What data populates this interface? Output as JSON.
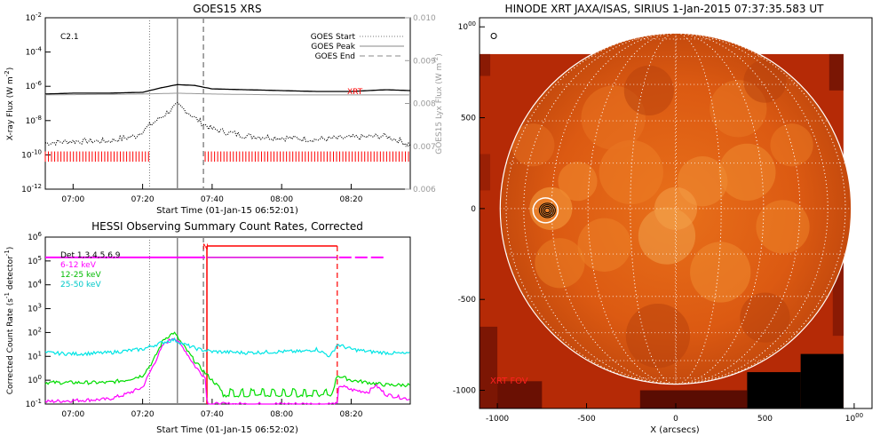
{
  "chart_data": [
    {
      "type": "line",
      "title": "GOES15 XRS",
      "xlabel": "Start Time (01-Jan-15 06:52:01)",
      "ylabel": "X-ray Flux (W m-2)",
      "ylabel_right": "GOES15 Lyx Flux (W m-2)",
      "x_ticks": [
        "07:00",
        "07:20",
        "07:40",
        "08:00",
        "08:20"
      ],
      "x_tick_minutes": [
        420,
        440,
        460,
        480,
        500
      ],
      "xlim_minutes": [
        412,
        517
      ],
      "y_ticks": [
        "10-2",
        "10-4",
        "10-6",
        "10-8",
        "10-10",
        "10-12"
      ],
      "y_exponents": [
        -2,
        -4,
        -6,
        -8,
        -10,
        -12
      ],
      "ylim_exp": [
        -12,
        -2
      ],
      "y2_ticks": [
        "0.010",
        "0.009",
        "0.008",
        "0.007",
        "0.006"
      ],
      "y2lim": [
        0.006,
        0.01
      ],
      "flare_class": "C2.1",
      "xrt_label": "XRT",
      "legend": [
        {
          "name": "GOES Start",
          "style": "dotted"
        },
        {
          "name": "GOES Peak",
          "style": "solid"
        },
        {
          "name": "GOES End",
          "style": "dashed"
        }
      ],
      "event_times_minutes": {
        "start": 442,
        "peak": 450,
        "end": 457.5
      },
      "series": [
        {
          "name": "XRS long",
          "exp_x": [
            412,
            420,
            430,
            440,
            445,
            450,
            455,
            460,
            470,
            480,
            490,
            500,
            510,
            517
          ],
          "exp_y": [
            -6.45,
            -6.4,
            -6.4,
            -6.35,
            -6.1,
            -5.9,
            -5.95,
            -6.15,
            -6.2,
            -6.25,
            -6.3,
            -6.3,
            -6.2,
            -6.25
          ]
        },
        {
          "name": "Lyman-alpha",
          "exp_x": [
            412,
            440,
            450,
            460,
            480,
            500,
            517
          ],
          "exp_y": [
            -6.5,
            -6.45,
            -6.4,
            -6.45,
            -6.5,
            -6.5,
            -6.5
          ]
        },
        {
          "name": "XRS short",
          "exp_x": [
            412,
            420,
            430,
            438,
            442,
            446,
            450,
            453,
            456,
            460,
            465,
            470,
            480,
            490,
            500,
            510,
            517
          ],
          "exp_y": [
            -9.3,
            -9.2,
            -9.2,
            -8.9,
            -8.3,
            -7.7,
            -7.1,
            -7.5,
            -8.0,
            -8.5,
            -8.7,
            -8.9,
            -9.0,
            -9.1,
            -9.0,
            -8.9,
            -9.4
          ]
        }
      ],
      "xrt_coverage_minutes": [
        [
          412,
          442
        ],
        [
          458,
          517
        ]
      ]
    },
    {
      "type": "line",
      "title": "HESSI Observing Summary Count Rates, Corrected",
      "xlabel": "Start Time (01-Jan-15 06:52:02)",
      "ylabel": "Corrected Count Rate (s-1 detector-1)",
      "x_ticks": [
        "07:00",
        "07:20",
        "07:40",
        "08:00",
        "08:20"
      ],
      "x_tick_minutes": [
        420,
        440,
        460,
        480,
        500
      ],
      "xlim_minutes": [
        412,
        517
      ],
      "y_ticks": [
        "10-1",
        "100",
        "101",
        "102",
        "103",
        "104",
        "105",
        "106"
      ],
      "y_exponents": [
        -1,
        0,
        1,
        2,
        3,
        4,
        5,
        6
      ],
      "ylim_exp": [
        -1,
        6
      ],
      "legend": [
        {
          "name": "Det 1,3,4,5,6,9",
          "color": "#000000"
        },
        {
          "name": "6-12 keV",
          "color": "#ff00ff"
        },
        {
          "name": "12-25 keV",
          "color": "#00dd00"
        },
        {
          "name": "25-50 keV",
          "color": "#00e5e5"
        }
      ],
      "night_label": "N",
      "night_minutes": [
        458.5,
        496
      ],
      "series": [
        {
          "name": "6-12 keV",
          "color": "#ff00ff",
          "exp_x": [
            412,
            420,
            430,
            435,
            440,
            443,
            446,
            449,
            452,
            455,
            458,
            458.6,
            496,
            496.5,
            500,
            505,
            507,
            510,
            517
          ],
          "exp_y": [
            -0.9,
            -0.85,
            -0.8,
            -0.6,
            -0.3,
            0.6,
            1.5,
            1.8,
            1.3,
            0.6,
            0.1,
            -1,
            -1,
            -0.2,
            -0.4,
            -0.5,
            -0.2,
            -0.6,
            -0.8
          ]
        },
        {
          "name": "12-25 keV",
          "color": "#00dd00",
          "exp_x": [
            412,
            420,
            430,
            435,
            440,
            443,
            446,
            449,
            452,
            455,
            458,
            462,
            470,
            480,
            486,
            488,
            494,
            496,
            500,
            505,
            510,
            517
          ],
          "exp_y": [
            -0.1,
            -0.1,
            -0.1,
            0,
            0.2,
            0.8,
            1.7,
            2.0,
            1.4,
            0.8,
            0.3,
            -0.3,
            -0.3,
            -0.4,
            -0.8,
            -0.8,
            -0.8,
            0.2,
            0.0,
            -0.1,
            -0.2,
            -0.2
          ]
        },
        {
          "name": "25-50 keV",
          "color": "#00e5e5",
          "exp_x": [
            412,
            420,
            430,
            440,
            445,
            449,
            452,
            456,
            460,
            470,
            480,
            486,
            490,
            494,
            496,
            500,
            505,
            510,
            517
          ],
          "exp_y": [
            1.15,
            1.1,
            1.15,
            1.3,
            1.55,
            1.7,
            1.5,
            1.3,
            1.2,
            1.15,
            1.2,
            1.2,
            1.3,
            1.0,
            1.5,
            1.3,
            1.2,
            1.15,
            1.1
          ]
        },
        {
          "name": "Det 1,3,4,5,6,9",
          "color": "#ff00ff",
          "exp_x": [
            412,
            458
          ],
          "exp_y": [
            5.1,
            5.1
          ]
        }
      ]
    },
    {
      "type": "heatmap",
      "title": "HINODE XRT JAXA/ISAS, SIRIUS   1-Jan-2015 07:37:35.583 UT",
      "xlabel": "X (arcsecs)",
      "ylabel": "Y (arcsecs)",
      "x_ticks": [
        "-1000",
        "-500",
        "0",
        "500",
        "1000"
      ],
      "x_tick_values": [
        -1000,
        -500,
        0,
        500,
        1000
      ],
      "y_ticks": [
        "1000",
        "500",
        "0",
        "-500",
        "-1000"
      ],
      "y_tick_values": [
        1000,
        500,
        0,
        -500,
        -1000
      ],
      "xlim": [
        -1100,
        1100
      ],
      "ylim": [
        -1100,
        1050
      ],
      "solar_radius_arcsec": 975,
      "fov_label": "XRT FOV",
      "fov_box": {
        "x": [
          -1100,
          940
        ],
        "y": [
          -1100,
          850
        ]
      },
      "flare_location": {
        "x": -730,
        "y": -10
      },
      "grid": true
    }
  ]
}
